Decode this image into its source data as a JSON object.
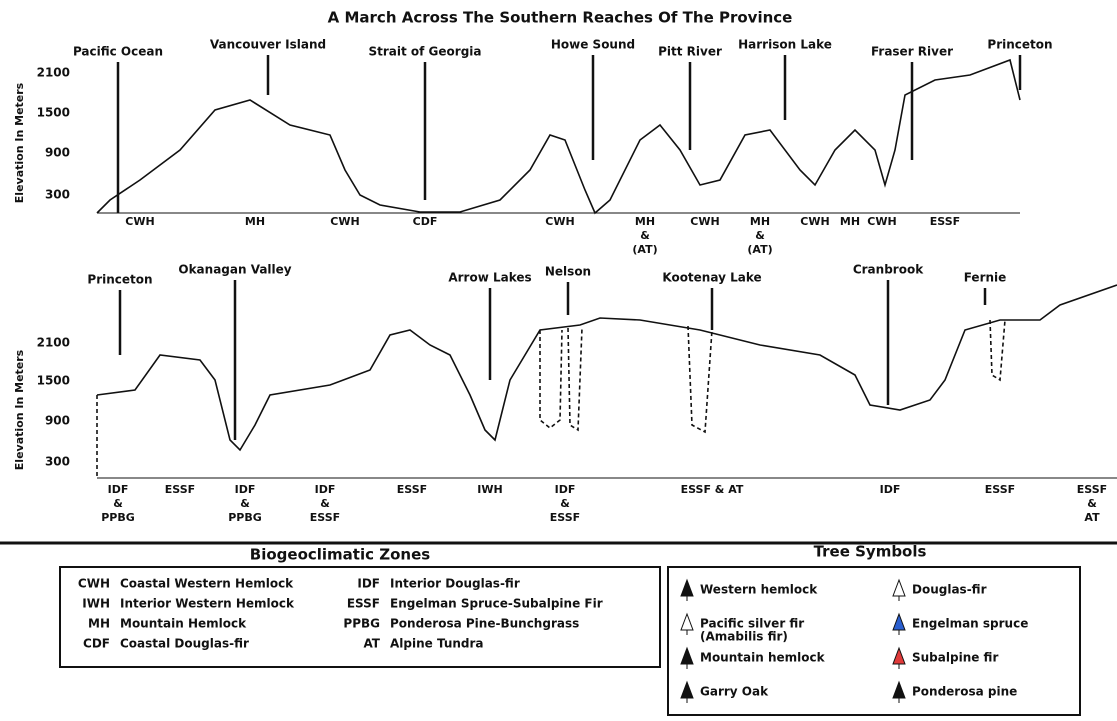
{
  "title": "A March Across The Southern Reaches Of The Province",
  "panels": [
    {
      "y_axis_label": "Elevation In Meters",
      "y_ticks": [
        "2100",
        "1500",
        "900",
        "300"
      ],
      "landmarks": [
        "Pacific Ocean",
        "Vancouver Island",
        "Strait of Georgia",
        "Howe Sound",
        "Pitt River",
        "Harrison Lake",
        "Fraser River",
        "Princeton"
      ],
      "zones": [
        [
          "CWH"
        ],
        [
          "MH"
        ],
        [
          "CWH"
        ],
        [
          "CDF"
        ],
        [
          "CWH"
        ],
        [
          "MH",
          "&",
          "(AT)"
        ],
        [
          "CWH"
        ],
        [
          "MH",
          "&",
          "(AT)"
        ],
        [
          "CWH"
        ],
        [
          "MH"
        ],
        [
          "CWH"
        ],
        [
          "ESSF"
        ]
      ]
    },
    {
      "y_axis_label": "Elevation In Meters",
      "y_ticks": [
        "2100",
        "1500",
        "900",
        "300"
      ],
      "landmarks": [
        "Princeton",
        "Okanagan Valley",
        "Arrow Lakes",
        "Nelson",
        "Kootenay Lake",
        "Cranbrook",
        "Fernie"
      ],
      "zones": [
        [
          "IDF",
          "&",
          "PPBG"
        ],
        [
          "ESSF"
        ],
        [
          "IDF",
          "&",
          "PPBG"
        ],
        [
          "IDF",
          "&",
          "ESSF"
        ],
        [
          "ESSF"
        ],
        [
          "IWH"
        ],
        [
          "IDF",
          "&",
          "ESSF"
        ],
        [
          "ESSF & AT"
        ],
        [
          "IDF"
        ],
        [
          "ESSF"
        ],
        [
          "ESSF",
          "&",
          "AT"
        ]
      ]
    }
  ],
  "zone_legend": {
    "title": "Biogeoclimatic Zones",
    "entries": [
      {
        "code": "CWH",
        "name": "Coastal Western Hemlock"
      },
      {
        "code": "IWH",
        "name": "Interior Western Hemlock"
      },
      {
        "code": "MH",
        "name": "Mountain Hemlock"
      },
      {
        "code": "CDF",
        "name": "Coastal Douglas-fir"
      },
      {
        "code": "IDF",
        "name": "Interior Douglas-fir"
      },
      {
        "code": "ESSF",
        "name": "Engelman Spruce-Subalpine Fir"
      },
      {
        "code": "PPBG",
        "name": "Ponderosa Pine-Bunchgrass"
      },
      {
        "code": "AT",
        "name": "Alpine Tundra"
      }
    ]
  },
  "tree_legend": {
    "title": "Tree Symbols",
    "entries": [
      [
        "Western hemlock"
      ],
      [
        "Pacific silver fir",
        "(Amabilis fir)"
      ],
      [
        "Mountain hemlock"
      ],
      [
        "Garry Oak"
      ],
      [
        "Douglas-fir"
      ],
      [
        "Engelman spruce"
      ],
      [
        "Subalpine fir"
      ],
      [
        "Ponderosa pine"
      ]
    ]
  }
}
